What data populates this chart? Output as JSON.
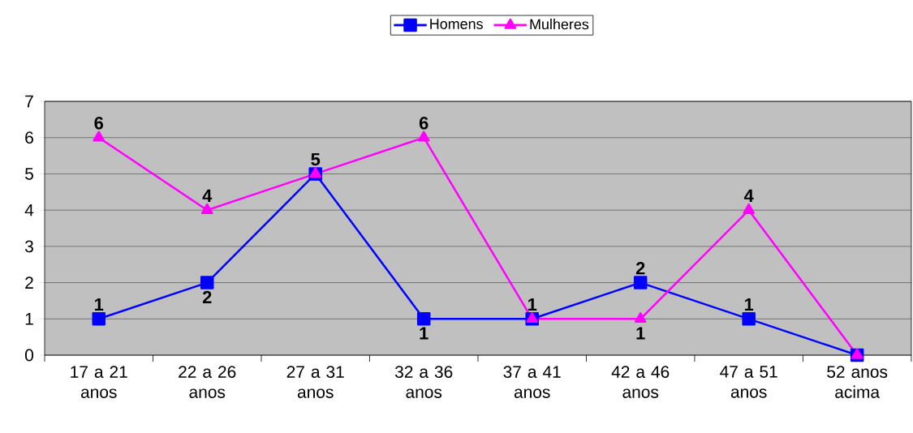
{
  "chart_data": {
    "type": "line",
    "categories": [
      "17 a 21 anos",
      "22 a 26 anos",
      "27 a 31 anos",
      "32 a 36 anos",
      "37 a 41 anos",
      "42 a 46 anos",
      "47 a 51 anos",
      "52 anos acima"
    ],
    "series": [
      {
        "name": "Homens",
        "color": "#0000ff",
        "marker": "square",
        "values": [
          1,
          2,
          5,
          1,
          1,
          2,
          1,
          0
        ],
        "value_labels": [
          "1",
          "2",
          "5",
          "1",
          "1",
          "2",
          "1",
          null
        ]
      },
      {
        "name": "Mulheres",
        "color": "#ff00ff",
        "marker": "triangle",
        "values": [
          6,
          4,
          5,
          6,
          1,
          1,
          4,
          0
        ],
        "value_labels": [
          "6",
          "4",
          null,
          "6",
          null,
          "1",
          "4",
          null
        ]
      }
    ],
    "ylim": [
      0,
      7
    ],
    "yticks": [
      0,
      1,
      2,
      3,
      4,
      5,
      6,
      7
    ],
    "grid": "y",
    "legend": "top",
    "line_style": "solid"
  }
}
